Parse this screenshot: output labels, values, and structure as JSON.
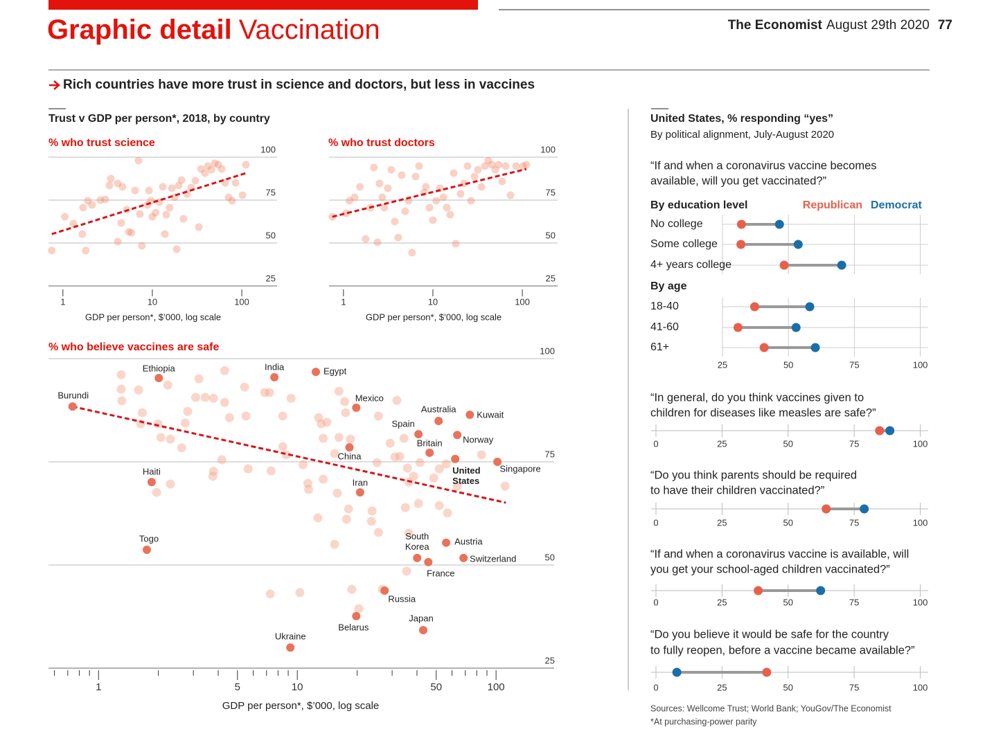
{
  "header": {
    "section": "Graphic detail",
    "topic": "Vaccination",
    "publication": "The Economist",
    "date": "August 29th 2020",
    "page": "77",
    "headline": "Rich countries have more trust in science and doctors, but less in vaccines"
  },
  "left_panel": {
    "title": "Trust v GDP per person*, 2018, by country"
  },
  "right_panel": {
    "title": "United States, % responding “yes”",
    "subtitle": "By political alignment, July-August 2020"
  },
  "footer": {
    "sources": "Sources: Wellcome Trust; World Bank; YouGov/The Economist",
    "note": "*At purchasing-power parity"
  },
  "chart_data": [
    {
      "type": "scatter",
      "title": "% who trust science",
      "x_label": "GDP per person*, $’000, log scale",
      "xscale": "log",
      "xlim": [
        0.69,
        248
      ],
      "xticks": [
        1,
        10,
        100
      ],
      "ylim": [
        25,
        100
      ],
      "yticks": [
        25,
        50,
        75,
        100
      ],
      "grid": true,
      "color": "#f08b6e",
      "x": [
        0.75,
        1.8,
        1.65,
        1.05,
        1.31,
        1.9,
        1.68,
        2.12,
        2.62,
        2.97,
        3.31,
        3.43,
        4.1,
        4.1,
        4.48,
        4.64,
        5.17,
        5.45,
        5.85,
        6.4,
        7.0,
        7.25,
        7.65,
        8.83,
        9.15,
        9.65,
        10.0,
        10.9,
        12.0,
        13.1,
        13.8,
        14.3,
        15.6,
        16.5,
        17.7,
        18.7,
        19.7,
        21.2,
        22.3,
        24.4,
        27.2,
        30.3,
        33.1,
        34.9,
        38.8,
        41.7,
        45.6,
        49.9,
        54.5,
        59.6,
        65.2,
        71.3,
        77.9,
        85.2,
        102,
        111
      ],
      "values": [
        45.6,
        45.6,
        55.2,
        65.3,
        61.3,
        74.6,
        70.6,
        72.2,
        75.0,
        75.4,
        83.5,
        87.5,
        84.7,
        50.8,
        61.7,
        82.7,
        69.4,
        56.5,
        56.0,
        80.6,
        98.0,
        66.9,
        48.4,
        72.2,
        80.6,
        74.6,
        65.3,
        67.7,
        73.8,
        82.7,
        55.2,
        66.5,
        70.6,
        81.9,
        76.6,
        46.4,
        83.5,
        86.7,
        64.1,
        78.6,
        82.3,
        86.3,
        59.3,
        93.1,
        90.7,
        94.8,
        92.7,
        96.4,
        95.6,
        93.1,
        85.1,
        76.6,
        74.6,
        85.1,
        77.8,
        95.6
      ],
      "trend": {
        "color": "#d7141a",
        "x": [
          0.75,
          111
        ],
        "values": [
          55.2,
          90.7
        ]
      }
    },
    {
      "type": "scatter",
      "title": "% who trust doctors",
      "x_label": "GDP per person*, $’000, log scale",
      "xscale": "log",
      "xlim": [
        0.69,
        248
      ],
      "xticks": [
        1,
        10,
        100
      ],
      "ylim": [
        25,
        100
      ],
      "yticks": [
        25,
        50,
        75,
        100
      ],
      "grid": true,
      "color": "#f08b6e",
      "x": [
        0.75,
        1.07,
        1.17,
        1.33,
        1.53,
        1.77,
        2.01,
        2.19,
        2.4,
        2.53,
        2.72,
        2.87,
        3.13,
        3.43,
        3.75,
        4.1,
        4.48,
        4.9,
        5.35,
        5.85,
        6.4,
        7.0,
        7.93,
        8.36,
        9.15,
        10.0,
        10.9,
        12.0,
        13.1,
        14.3,
        15.6,
        17.1,
        18.0,
        20.4,
        22.3,
        24.4,
        26.7,
        29.2,
        31.9,
        34.9,
        38.1,
        41.7,
        45.6,
        49.9,
        54.5,
        59.6,
        65.2,
        73.8,
        85.2,
        102,
        111
      ],
      "values": [
        65.3,
        67.3,
        74.6,
        76.6,
        82.7,
        52.4,
        70.6,
        94.0,
        50.4,
        84.7,
        76.6,
        70.6,
        81.9,
        92.7,
        62.5,
        53.2,
        89.5,
        68.5,
        74.6,
        44.4,
        88.7,
        94.8,
        79.4,
        82.7,
        70.6,
        63.3,
        74.6,
        81.9,
        76.6,
        70.6,
        66.5,
        90.7,
        49.6,
        78.6,
        84.7,
        94.8,
        74.6,
        88.7,
        92.7,
        82.7,
        94.8,
        98.0,
        95.6,
        92.7,
        95.6,
        85.9,
        94.8,
        77.8,
        94.8,
        94.8,
        95.6
      ],
      "trend": {
        "color": "#d7141a",
        "x": [
          0.75,
          111
        ],
        "values": [
          65.3,
          93.1
        ]
      }
    },
    {
      "type": "scatter",
      "title": "% who believe vaccines are safe",
      "x_label": "GDP per person*, $’000, log scale",
      "xscale": "log",
      "xlim": [
        0.56,
        196
      ],
      "xticks": [
        1,
        5,
        10,
        50,
        100
      ],
      "xminorticks": [
        0.6,
        0.7,
        0.8,
        0.9,
        2,
        3,
        4,
        6,
        7,
        8,
        9,
        20,
        30,
        40,
        60,
        70,
        80,
        90
      ],
      "ylim": [
        25,
        100
      ],
      "yticks": [
        25,
        50,
        75,
        100
      ],
      "grid": true,
      "color": "#f4a58a",
      "x": [
        1.3,
        1.3,
        1.31,
        1.59,
        1.66,
        1.63,
        1.99,
        2.23,
        2.06,
        2.3,
        2.62,
        2.81,
        2.73,
        3.2,
        3.08,
        3.44,
        3.79,
        4.31,
        4.31,
        4.56,
        5.43,
        5.52,
        6.86,
        7.25,
        9.31,
        8.45,
        8.45,
        8.79,
        4.17,
        3.79,
        3.76,
        5.66,
        7.38,
        10.7,
        11.3,
        11.4,
        13.5,
        13.5,
        14.1,
        13.2,
        12.8,
        16.2,
        15.4,
        18.5,
        16.2,
        17.3,
        17.5,
        25.6,
        31.7,
        29.3,
        31.0,
        32.8,
        34.4,
        35.8,
        36.4,
        41.4,
        48.6,
        51.8,
        56.1,
        51.8,
        57.0,
        84.5,
        111,
        40.7,
        35.0,
        18.1,
        17.7,
        12.7,
        15.9,
        23.6,
        25.6,
        15.4,
        36.4,
        35.5,
        7.31,
        10.3,
        18.8,
        20.4,
        26.8,
        23.8,
        25.2,
        2.3,
        1.96,
        38.5,
        63.8
      ],
      "values": [
        96.1,
        92.6,
        89.8,
        92.4,
        86.9,
        84.2,
        84.2,
        93.6,
        80.9,
        80.5,
        78.4,
        87.2,
        84.4,
        95.1,
        90.6,
        90.6,
        90.4,
        97.1,
        89.4,
        85.7,
        93.1,
        86.1,
        91.8,
        91.8,
        90.4,
        86.1,
        78.7,
        76.7,
        75.5,
        72.7,
        71.5,
        73.3,
        72.8,
        74.3,
        69.8,
        68.3,
        80.7,
        70.8,
        84.6,
        84.2,
        85.7,
        80.9,
        77.0,
        80.5,
        92.1,
        89.6,
        86.9,
        86.1,
        89.9,
        79.5,
        76.2,
        76.3,
        80.7,
        73.5,
        70.1,
        74.8,
        71.1,
        73.3,
        74.5,
        64.4,
        62.6,
        76.7,
        69.1,
        64.9,
        63.9,
        63.6,
        61.1,
        61.4,
        67.4,
        60.6,
        57.9,
        55.0,
        57.7,
        48.5,
        43.0,
        43.3,
        44.1,
        39.4,
        44.1,
        63.1,
        74.8,
        69.6,
        67.6,
        71.5,
        69.1
      ],
      "labeled": {
        "color": "#e8735a",
        "names": [
          "Burundi",
          "Ethiopia",
          "India",
          "Egypt",
          "Mexico",
          "Australia",
          "Kuwait",
          "Spain",
          "Norway",
          "Britain",
          "China",
          "United States",
          "Singapore",
          "Haiti",
          "Iran",
          "Togo",
          "South Korea",
          "Austria",
          "Switzerland",
          "France",
          "Russia",
          "Japan",
          "Belarus",
          "Ukraine"
        ],
        "x": [
          0.74,
          2.01,
          7.67,
          12.4,
          19.8,
          51.4,
          73.8,
          40.7,
          63.8,
          46.3,
          18.3,
          62.3,
          101.6,
          1.85,
          20.7,
          1.75,
          40.1,
          56.1,
          68.6,
          45.6,
          27.5,
          43.0,
          19.8,
          9.23
        ],
        "values": [
          88.4,
          95.3,
          95.5,
          96.8,
          88.1,
          84.9,
          86.4,
          81.7,
          81.5,
          77.2,
          78.5,
          75.7,
          75.0,
          70.1,
          67.6,
          53.7,
          51.7,
          55.4,
          51.7,
          50.7,
          43.8,
          34.2,
          37.6,
          30.0
        ]
      },
      "trend": {
        "color": "#d7141a",
        "x": [
          0.74,
          112
        ],
        "values": [
          88.4,
          65.1
        ]
      }
    },
    {
      "type": "dumbbell",
      "question": [
        "“If and when a coronavirus vaccine becomes",
        "available, will you get vaccinated?”"
      ],
      "series": [
        {
          "name": "Republican",
          "color": "#e8604c",
          "values": [
            [
              32.2,
              32.0,
              48.4
            ],
            [
              37.2,
              30.9,
              40.8
            ]
          ]
        },
        {
          "name": "Democrat",
          "color": "#1a6ea8",
          "values": [
            [
              46.6,
              53.7,
              70.2
            ],
            [
              58.1,
              52.9,
              60.2
            ]
          ]
        }
      ],
      "groups": [
        {
          "title": "By education level",
          "categories": [
            "No college",
            "Some college",
            "4+ years college"
          ]
        },
        {
          "title": "By age",
          "categories": [
            "18-40",
            "41-60",
            "61+"
          ]
        }
      ],
      "xlim": [
        25,
        103
      ],
      "xticks": [
        25,
        50,
        75,
        100
      ],
      "grid": true
    },
    {
      "type": "dumbbell",
      "question": [
        "“In general, do you think vaccines given to",
        "children for diseases like measles are safe?”"
      ],
      "series": [
        {
          "color": "#e8604c",
          "values": [
            84.6
          ]
        },
        {
          "color": "#1a6ea8",
          "values": [
            88.5
          ]
        }
      ],
      "xlim": [
        0,
        103
      ],
      "xticks": [
        0,
        25,
        50,
        75,
        100
      ]
    },
    {
      "type": "dumbbell",
      "question": [
        "“Do you think parents should be required",
        "to have their children vaccinated?”"
      ],
      "series": [
        {
          "color": "#e8604c",
          "values": [
            64.4
          ]
        },
        {
          "color": "#1a6ea8",
          "values": [
            78.8
          ]
        }
      ],
      "xlim": [
        0,
        103
      ],
      "xticks": [
        0,
        25,
        50,
        75,
        100
      ]
    },
    {
      "type": "dumbbell",
      "question": [
        "“If and when a coronavirus vaccine is available, will",
        "you get your school-aged children vaccinated?”"
      ],
      "series": [
        {
          "color": "#e8604c",
          "values": [
            38.7
          ]
        },
        {
          "color": "#1a6ea8",
          "values": [
            62.3
          ]
        }
      ],
      "xlim": [
        0,
        103
      ],
      "xticks": [
        0,
        25,
        50,
        75,
        100
      ]
    },
    {
      "type": "dumbbell",
      "question": [
        "“Do you believe it would be safe for the country",
        "to fully reopen, before a vaccine became available?”"
      ],
      "series": [
        {
          "color": "#e8604c",
          "values": [
            41.9
          ]
        },
        {
          "color": "#1a6ea8",
          "values": [
            7.9
          ]
        }
      ],
      "xlim": [
        0,
        103
      ],
      "xticks": [
        0,
        25,
        50,
        75,
        100
      ]
    }
  ]
}
